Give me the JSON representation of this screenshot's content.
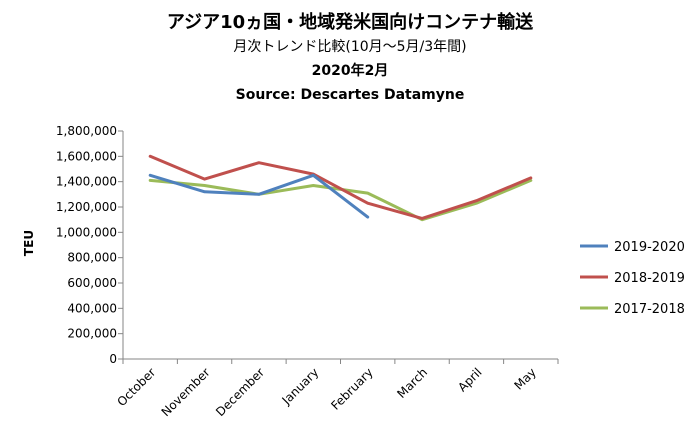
{
  "chart_data": {
    "type": "line",
    "title": "アジア10ヵ国・地域発米国向けコンテナ輸送",
    "subtitle": "月次トレンド比較(10月～5月/3年間)",
    "date_label": "2020年2月",
    "source": "Source: Descartes Datamyne",
    "ylabel": "TEU",
    "xlabel": "",
    "ylim": [
      0,
      1800000
    ],
    "ytick_labels": [
      "0",
      "200,000",
      "400,000",
      "600,000",
      "800,000",
      "1,000,000",
      "1,200,000",
      "1,400,000",
      "1,600,000",
      "1,800,000"
    ],
    "categories": [
      "October",
      "November",
      "December",
      "January",
      "February",
      "March",
      "April",
      "May"
    ],
    "grid": false,
    "legend_position": "right",
    "series": [
      {
        "name": "2019-2020",
        "color": "#4F81BD",
        "values": [
          1450000,
          1320000,
          1300000,
          1450000,
          1120000,
          null,
          null,
          null
        ]
      },
      {
        "name": "2018-2019",
        "color": "#C0504D",
        "values": [
          1600000,
          1420000,
          1550000,
          1460000,
          1230000,
          1110000,
          1250000,
          1430000
        ]
      },
      {
        "name": "2017-2018",
        "color": "#9BBB59",
        "values": [
          1410000,
          1370000,
          1300000,
          1370000,
          1310000,
          1100000,
          1230000,
          1410000
        ]
      }
    ]
  }
}
